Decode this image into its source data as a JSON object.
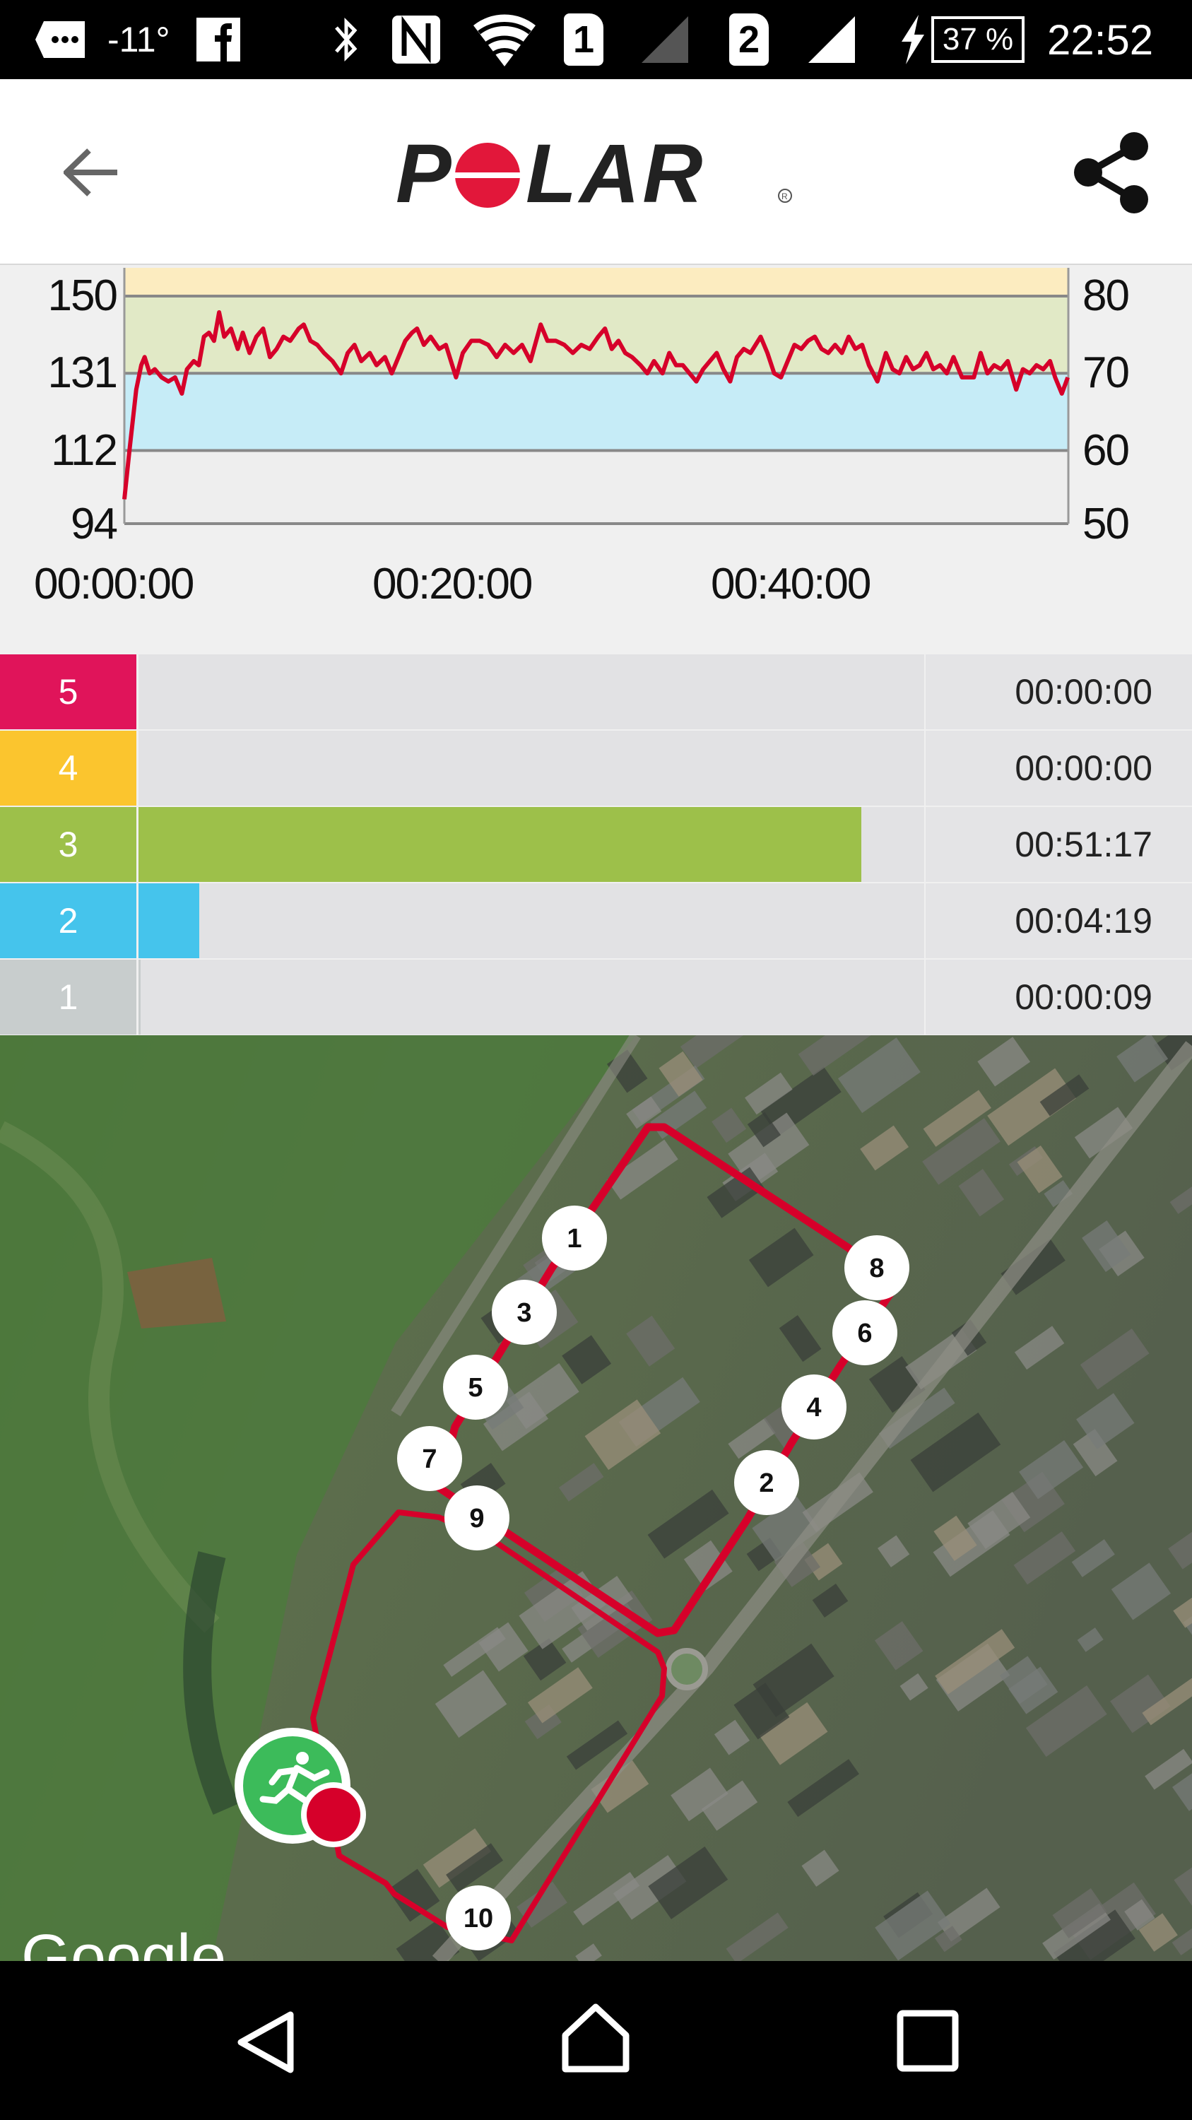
{
  "status_bar": {
    "temperature": "-11°",
    "sim1": "1",
    "sim2": "2",
    "battery": "37 %",
    "battery_level": 0.37,
    "time": "22:52",
    "icons": [
      "notification-bubble-icon",
      "facebook-icon",
      "bluetooth-icon",
      "nfc-icon",
      "wifi-icon",
      "sim1-icon",
      "signal-icon",
      "sim2-icon",
      "signal-icon",
      "charging-icon",
      "battery-icon"
    ]
  },
  "header": {
    "logo": "POLAR",
    "back_icon": "arrow-left-icon",
    "share_icon": "share-icon",
    "brand_red": "#e2173a"
  },
  "chart_data": {
    "type": "line",
    "left_ticks": [
      "150",
      "131",
      "112",
      "94"
    ],
    "right_ticks": [
      "80",
      "70",
      "60",
      "50"
    ],
    "x_ticks": [
      "00:00:00",
      "00:20:00",
      "00:40:00"
    ],
    "ylim": [
      94,
      150
    ],
    "xlim": [
      "00:00:00",
      "00:55:45"
    ],
    "zone_bands": [
      {
        "from": 150,
        "to": 157,
        "color": "#fcecc0"
      },
      {
        "from": 131,
        "to": 150,
        "color": "#e1e9c6"
      },
      {
        "from": 112,
        "to": 131,
        "color": "#c6ecf7"
      },
      {
        "from": 94,
        "to": 112,
        "color": "#eeeeee"
      }
    ],
    "line_color": "#d6002a",
    "series": [
      {
        "points": [
          [
            "00:00:00",
            100
          ],
          [
            "00:00:18",
            112
          ],
          [
            "00:00:42",
            127
          ],
          [
            "00:01:00",
            133
          ],
          [
            "00:01:12",
            135
          ],
          [
            "00:01:30",
            131
          ],
          [
            "00:01:48",
            132
          ],
          [
            "00:02:12",
            130
          ],
          [
            "00:02:36",
            129
          ],
          [
            "00:03:00",
            130
          ],
          [
            "00:03:24",
            126
          ],
          [
            "00:03:42",
            132
          ],
          [
            "00:04:06",
            134
          ],
          [
            "00:04:24",
            133
          ],
          [
            "00:04:42",
            140
          ],
          [
            "00:05:00",
            141
          ],
          [
            "00:05:18",
            139
          ],
          [
            "00:05:36",
            146
          ],
          [
            "00:05:54",
            140
          ],
          [
            "00:06:18",
            142
          ],
          [
            "00:06:42",
            137
          ],
          [
            "00:07:00",
            141
          ],
          [
            "00:07:24",
            136
          ],
          [
            "00:07:48",
            140
          ],
          [
            "00:08:12",
            142
          ],
          [
            "00:08:36",
            135
          ],
          [
            "00:09:00",
            137
          ],
          [
            "00:09:24",
            140
          ],
          [
            "00:09:48",
            139
          ],
          [
            "00:10:18",
            142
          ],
          [
            "00:10:36",
            143
          ],
          [
            "00:11:00",
            139
          ],
          [
            "00:11:24",
            138
          ],
          [
            "00:11:48",
            136
          ],
          [
            "00:12:18",
            134
          ],
          [
            "00:12:48",
            131
          ],
          [
            "00:13:12",
            136
          ],
          [
            "00:13:36",
            138
          ],
          [
            "00:14:00",
            134
          ],
          [
            "00:14:30",
            136
          ],
          [
            "00:14:54",
            133
          ],
          [
            "00:15:24",
            135
          ],
          [
            "00:15:48",
            131
          ],
          [
            "00:16:12",
            135
          ],
          [
            "00:16:36",
            139
          ],
          [
            "00:17:00",
            141
          ],
          [
            "00:17:18",
            142
          ],
          [
            "00:17:42",
            138
          ],
          [
            "00:18:06",
            140
          ],
          [
            "00:18:36",
            137
          ],
          [
            "00:19:00",
            138
          ],
          [
            "00:19:36",
            130
          ],
          [
            "00:20:00",
            136
          ],
          [
            "00:20:30",
            139
          ],
          [
            "00:21:00",
            139
          ],
          [
            "00:21:30",
            138
          ],
          [
            "00:22:00",
            135
          ],
          [
            "00:22:30",
            138
          ],
          [
            "00:23:00",
            136
          ],
          [
            "00:23:30",
            138
          ],
          [
            "00:24:00",
            134
          ],
          [
            "00:24:36",
            143
          ],
          [
            "00:25:00",
            139
          ],
          [
            "00:25:30",
            139
          ],
          [
            "00:26:00",
            138
          ],
          [
            "00:26:30",
            136
          ],
          [
            "00:27:00",
            138
          ],
          [
            "00:27:30",
            137
          ],
          [
            "00:28:00",
            140
          ],
          [
            "00:28:24",
            142
          ],
          [
            "00:28:48",
            137
          ],
          [
            "00:29:12",
            139
          ],
          [
            "00:29:36",
            136
          ],
          [
            "00:30:00",
            135
          ],
          [
            "00:30:30",
            133
          ],
          [
            "00:30:54",
            131
          ],
          [
            "00:31:18",
            134
          ],
          [
            "00:31:48",
            131
          ],
          [
            "00:32:12",
            136
          ],
          [
            "00:32:36",
            133
          ],
          [
            "00:33:00",
            133
          ],
          [
            "00:33:24",
            131
          ],
          [
            "00:33:48",
            129
          ],
          [
            "00:34:12",
            132
          ],
          [
            "00:34:36",
            134
          ],
          [
            "00:35:00",
            136
          ],
          [
            "00:35:24",
            132
          ],
          [
            "00:35:48",
            129
          ],
          [
            "00:36:12",
            135
          ],
          [
            "00:36:36",
            137
          ],
          [
            "00:37:00",
            136
          ],
          [
            "00:37:36",
            140
          ],
          [
            "00:38:00",
            136
          ],
          [
            "00:38:24",
            131
          ],
          [
            "00:38:48",
            130
          ],
          [
            "00:39:12",
            134
          ],
          [
            "00:39:36",
            138
          ],
          [
            "00:40:00",
            137
          ],
          [
            "00:40:24",
            139
          ],
          [
            "00:40:48",
            140
          ],
          [
            "00:41:12",
            137
          ],
          [
            "00:41:36",
            136
          ],
          [
            "00:42:00",
            138
          ],
          [
            "00:42:24",
            136
          ],
          [
            "00:42:48",
            140
          ],
          [
            "00:43:12",
            137
          ],
          [
            "00:43:36",
            138
          ],
          [
            "00:44:00",
            133
          ],
          [
            "00:44:30",
            129
          ],
          [
            "00:45:00",
            136
          ],
          [
            "00:45:24",
            132
          ],
          [
            "00:45:48",
            131
          ],
          [
            "00:46:12",
            135
          ],
          [
            "00:46:36",
            132
          ],
          [
            "00:47:00",
            133
          ],
          [
            "00:47:24",
            136
          ],
          [
            "00:47:48",
            132
          ],
          [
            "00:48:12",
            133
          ],
          [
            "00:48:36",
            131
          ],
          [
            "00:49:00",
            135
          ],
          [
            "00:49:30",
            130
          ],
          [
            "00:50:12",
            130
          ],
          [
            "00:50:36",
            136
          ],
          [
            "00:51:00",
            131
          ],
          [
            "00:51:24",
            133
          ],
          [
            "00:51:48",
            132
          ],
          [
            "00:52:12",
            134
          ],
          [
            "00:52:42",
            127
          ],
          [
            "00:53:06",
            132
          ],
          [
            "00:53:30",
            131
          ],
          [
            "00:53:54",
            133
          ],
          [
            "00:54:18",
            132
          ],
          [
            "00:54:42",
            134
          ],
          [
            "00:55:00",
            130
          ],
          [
            "00:55:24",
            126
          ],
          [
            "00:55:45",
            130
          ]
        ]
      }
    ]
  },
  "zones": [
    {
      "zone": "5",
      "time": "00:00:00",
      "color": "#e0145a"
    },
    {
      "zone": "4",
      "time": "00:00:00",
      "color": "#fbc52e"
    },
    {
      "zone": "3",
      "time": "00:51:17",
      "color": "#9dc04a"
    },
    {
      "zone": "2",
      "time": "00:04:19",
      "color": "#45c4ec"
    },
    {
      "zone": "1",
      "time": "00:00:09",
      "color": "#c8cdcd"
    }
  ],
  "map": {
    "route_color": "#d6002a",
    "start_icon": "running-person-icon",
    "lap_markers": [
      "1",
      "2",
      "3",
      "4",
      "5",
      "6",
      "7",
      "8",
      "9",
      "10"
    ],
    "attribution": "Google"
  },
  "nav_bar": {
    "back_icon": "nav-back-icon",
    "home_icon": "nav-home-icon",
    "recents_icon": "nav-recents-icon"
  }
}
